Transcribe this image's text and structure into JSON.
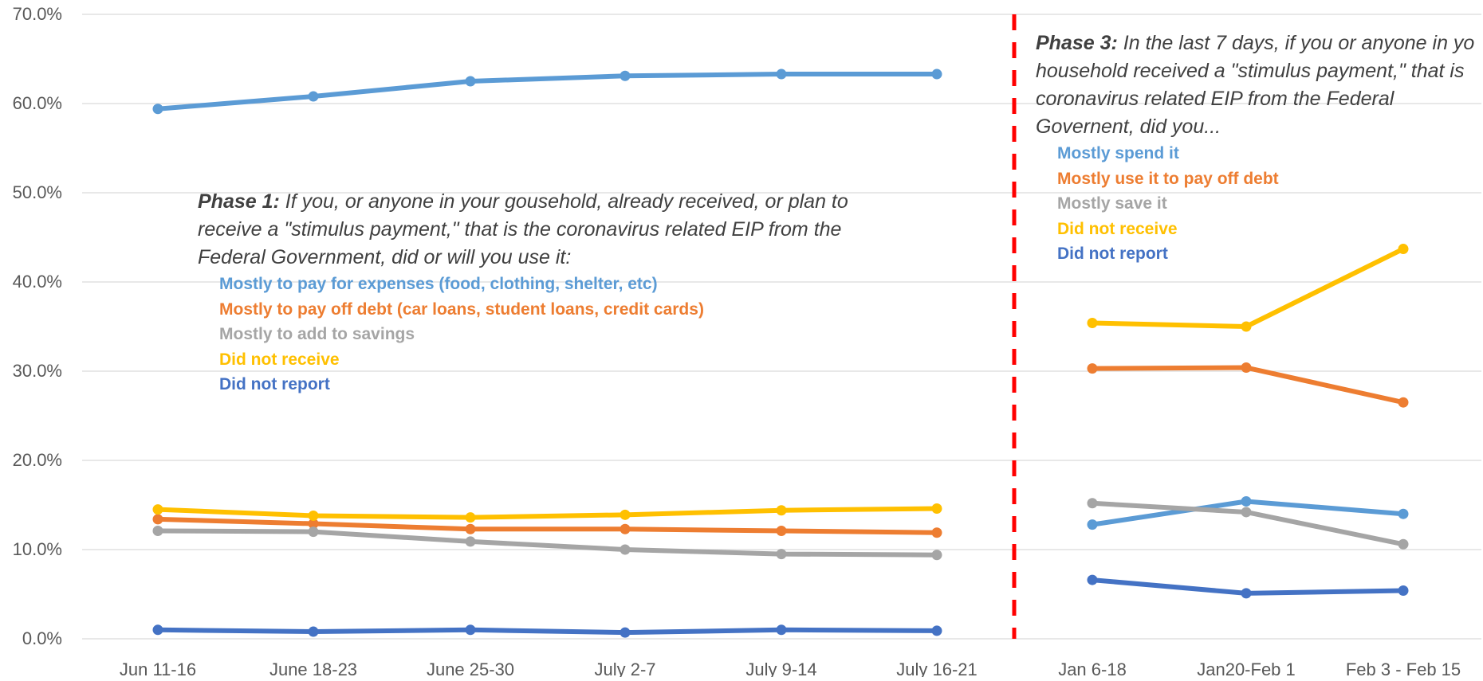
{
  "chart_data": {
    "type": "line",
    "x": [
      "Jun 11-16",
      "June 18-23",
      "June 25-30",
      "July 2-7",
      "July 9-14",
      "July 16-21",
      "Jan 6-18",
      "Jan20-Feb 1",
      "Feb 3 - Feb 15"
    ],
    "yticks": [
      "0.0%",
      "10.0%",
      "20.0%",
      "30.0%",
      "40.0%",
      "50.0%",
      "60.0%",
      "70.0%"
    ],
    "ylim": [
      0,
      70
    ],
    "grid": true,
    "series": [
      {
        "key": "spend",
        "color": "#5B9BD5",
        "phase1": [
          59.4,
          60.8,
          62.5,
          63.1,
          63.3,
          63.3
        ],
        "phase3": [
          12.8,
          15.4,
          14.0
        ]
      },
      {
        "key": "debt",
        "color": "#ED7D31",
        "phase1": [
          13.4,
          12.9,
          12.3,
          12.3,
          12.1,
          11.9
        ],
        "phase3": [
          30.3,
          30.4,
          26.5
        ]
      },
      {
        "key": "save",
        "color": "#A5A5A5",
        "phase1": [
          12.1,
          12.0,
          10.9,
          10.0,
          9.5,
          9.4
        ],
        "phase3": [
          15.2,
          14.2,
          10.6
        ]
      },
      {
        "key": "notreceive",
        "color": "#FFC000",
        "phase1": [
          14.5,
          13.8,
          13.6,
          13.9,
          14.4,
          14.6
        ],
        "phase3": [
          35.4,
          35.0,
          43.7
        ]
      },
      {
        "key": "notreport",
        "color": "#4472C4",
        "phase1": [
          1.0,
          0.8,
          1.0,
          0.7,
          1.0,
          0.9
        ],
        "phase3": [
          6.6,
          5.1,
          5.4
        ]
      }
    ],
    "divider_color": "#FF0000"
  },
  "annotations": {
    "phase1": {
      "prefix": "Phase 1:",
      "question": " If you, or anyone in your gousehold, already received, or plan to receive a \"stimulus payment,\" that is the coronavirus related EIP from the Federal Government, did or will you use it:",
      "legend": [
        {
          "text": "Mostly to pay for expenses  (food, clothing, shelter, etc)",
          "color": "#5B9BD5"
        },
        {
          "text": "Mostly to pay off debt (car loans, student loans, credit cards)",
          "color": "#ED7D31"
        },
        {
          "text": "Mostly to add to savings",
          "color": "#A5A5A5"
        },
        {
          "text": "Did not receive",
          "color": "#FFC000"
        },
        {
          "text": "Did not report",
          "color": "#4472C4"
        }
      ]
    },
    "phase3": {
      "prefix": "Phase 3:",
      "question": " In the last 7 days, if you or anyone in yo household received a \"stimulus payment,\" that is coronavirus related EIP from the Federal Governent, did you...",
      "legend": [
        {
          "text": "Mostly spend it",
          "color": "#5B9BD5"
        },
        {
          "text": "Mostly use it to pay off debt",
          "color": "#ED7D31"
        },
        {
          "text": "Mostly save it",
          "color": "#A5A5A5"
        },
        {
          "text": "Did not receive",
          "color": "#FFC000"
        },
        {
          "text": "Did not report",
          "color": "#4472C4"
        }
      ]
    }
  }
}
